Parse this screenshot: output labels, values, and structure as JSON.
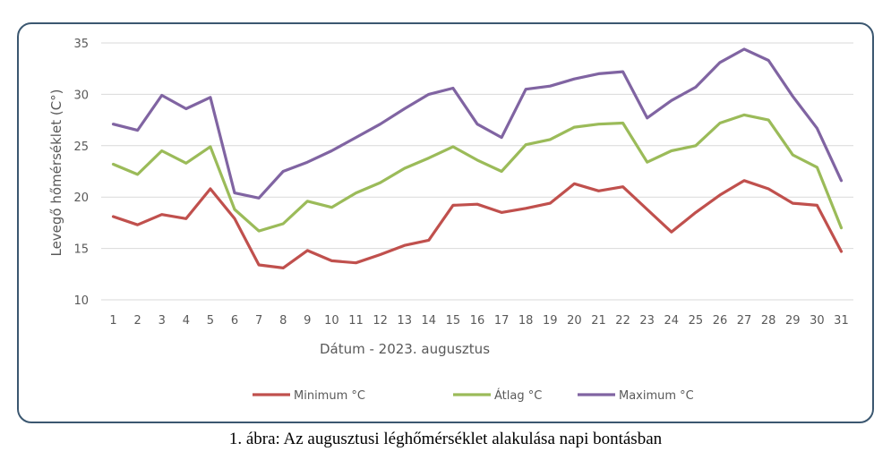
{
  "caption": "1. ábra: Az augusztusi léghőmérséklet alakulása napi bontásban",
  "chart_data": {
    "type": "line",
    "title": "",
    "xlabel": "Dátum - 2023. augusztus",
    "ylabel": "Levegő hőmérséklet (C°)",
    "ylim": [
      10,
      35
    ],
    "yticks": [
      10,
      15,
      20,
      25,
      30,
      35
    ],
    "grid": true,
    "legend_position": "bottom",
    "categories": [
      "1",
      "2",
      "3",
      "4",
      "5",
      "6",
      "7",
      "8",
      "9",
      "10",
      "11",
      "12",
      "13",
      "14",
      "15",
      "16",
      "17",
      "18",
      "19",
      "20",
      "21",
      "22",
      "23",
      "24",
      "25",
      "26",
      "27",
      "28",
      "29",
      "30",
      "31"
    ],
    "series": [
      {
        "name": "Minimum °C",
        "color": "#c0504d",
        "values": [
          18.1,
          17.3,
          18.3,
          17.9,
          20.8,
          17.9,
          13.4,
          13.1,
          14.8,
          13.8,
          13.6,
          14.4,
          15.3,
          15.8,
          19.2,
          19.3,
          18.5,
          18.9,
          19.4,
          21.3,
          20.6,
          21.0,
          18.8,
          16.6,
          18.5,
          20.2,
          21.6,
          20.8,
          19.4,
          19.2,
          14.7
        ]
      },
      {
        "name": "Átlag °C",
        "color": "#9bbb59",
        "values": [
          23.2,
          22.2,
          24.5,
          23.3,
          24.9,
          18.8,
          16.7,
          17.4,
          19.6,
          19.0,
          20.4,
          21.4,
          22.8,
          23.8,
          24.9,
          23.6,
          22.5,
          25.1,
          25.6,
          26.8,
          27.1,
          27.2,
          23.4,
          24.5,
          25.0,
          27.2,
          28.0,
          27.5,
          24.1,
          22.9,
          17.0
        ]
      },
      {
        "name": "Maximum °C",
        "color": "#8064a2",
        "values": [
          27.1,
          26.5,
          29.9,
          28.6,
          29.7,
          20.4,
          19.9,
          22.5,
          23.4,
          24.5,
          25.8,
          27.1,
          28.6,
          30.0,
          30.6,
          27.1,
          25.8,
          30.5,
          30.8,
          31.5,
          32.0,
          32.2,
          27.7,
          29.4,
          30.7,
          33.1,
          34.4,
          33.3,
          29.8,
          26.7,
          21.6
        ]
      }
    ]
  }
}
